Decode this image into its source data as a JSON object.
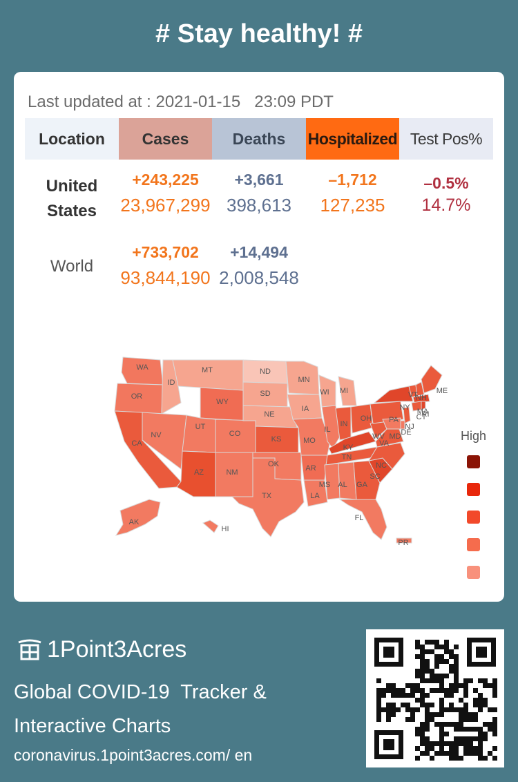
{
  "headline": "# Stay healthy! #",
  "last_updated": "Last updated at : 2021-01-15   23:09 PDT",
  "table": {
    "headers": {
      "location": "Location",
      "cases": "Cases",
      "deaths": "Deaths",
      "hospitalized": "Hospitalized",
      "test_pos": "Test Pos%"
    },
    "us": {
      "location_line1": "United",
      "location_line2": "States",
      "cases_delta": "+243,225",
      "cases_total": "23,967,299",
      "deaths_delta": "+3,661",
      "deaths_total": "398,613",
      "hosp_delta": "–1,712",
      "hosp_total": "127,235",
      "test_delta": "–0.5%",
      "test_total": "14.7%"
    },
    "world": {
      "location": "World",
      "cases_delta": "+733,702",
      "cases_total": "93,844,190",
      "deaths_delta": "+14,494",
      "deaths_total": "2,008,548"
    }
  },
  "map": {
    "legend_title": "High",
    "legend_colors": [
      "#8b1406",
      "#e8270b",
      "#f2492a",
      "#f56c4d",
      "#f8917c"
    ],
    "states": [
      "WA",
      "OR",
      "CA",
      "ID",
      "NV",
      "MT",
      "WY",
      "UT",
      "AZ",
      "CO",
      "NM",
      "ND",
      "SD",
      "NE",
      "KS",
      "OK",
      "TX",
      "MN",
      "IA",
      "MO",
      "AR",
      "LA",
      "WI",
      "IL",
      "MI",
      "IN",
      "OH",
      "KY",
      "TN",
      "MS",
      "AL",
      "GA",
      "FL",
      "SC",
      "NC",
      "VA",
      "WV",
      "PA",
      "NY",
      "VT",
      "NH",
      "ME",
      "MA",
      "CT",
      "RI",
      "NJ",
      "DE",
      "MD",
      "AK",
      "HI",
      "PR"
    ]
  },
  "footer": {
    "brand": "1Point3Acres",
    "tagline": "Global COVID-19  Tracker &\nInteractive Charts",
    "url": "coronavirus.1point3acres.com/ en"
  }
}
